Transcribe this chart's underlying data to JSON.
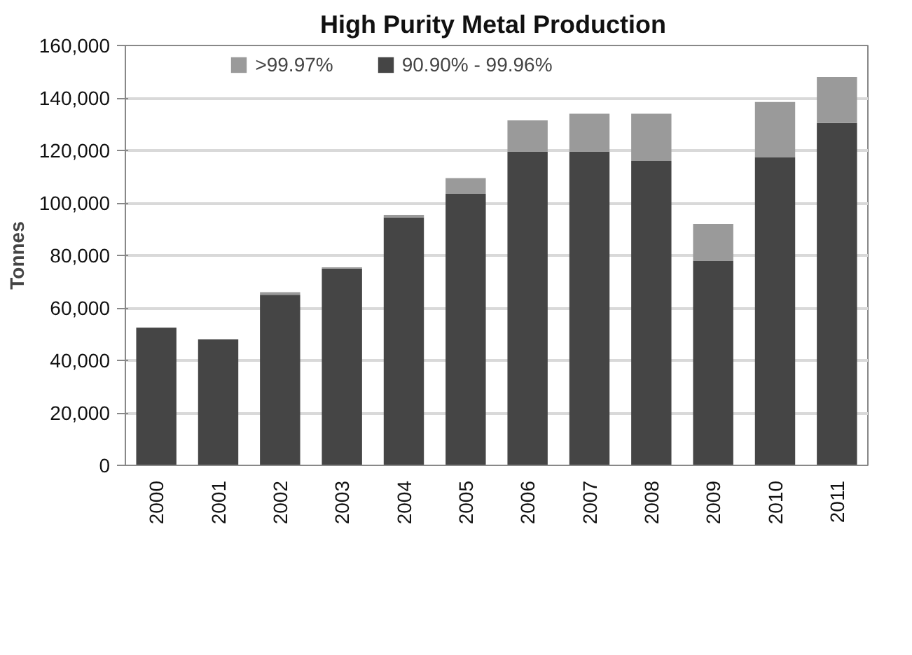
{
  "chart_data": {
    "type": "bar",
    "title": "High Purity Metal  Production",
    "ylabel": "Tonnes",
    "categories": [
      "2000",
      "2001",
      "2002",
      "2003",
      "2004",
      "2005",
      "2006",
      "2007",
      "2008",
      "2009",
      "2010",
      "2011"
    ],
    "stacked": true,
    "series": [
      {
        "name": "90.90% - 99.96%",
        "color": "#454545",
        "values": [
          52500,
          48000,
          65000,
          75000,
          94500,
          103500,
          119500,
          119500,
          116000,
          78000,
          117500,
          130500
        ]
      },
      {
        "name": ">99.97%",
        "color": "#9a9a9a",
        "values": [
          0,
          0,
          1000,
          500,
          1000,
          6000,
          12000,
          14500,
          18000,
          14000,
          21000,
          17500
        ]
      }
    ],
    "ylim": [
      0,
      160000
    ],
    "yticks": [
      {
        "value": 0,
        "label": "0"
      },
      {
        "value": 20000,
        "label": "20,000"
      },
      {
        "value": 40000,
        "label": "40,000"
      },
      {
        "value": 60000,
        "label": "60,000"
      },
      {
        "value": 80000,
        "label": "80,000"
      },
      {
        "value": 100000,
        "label": "100,000"
      },
      {
        "value": 120000,
        "label": "120,000"
      },
      {
        "value": 140000,
        "label": "140,000"
      },
      {
        "value": 160000,
        "label": "160,000"
      }
    ],
    "grid": "y",
    "legend": "top"
  }
}
